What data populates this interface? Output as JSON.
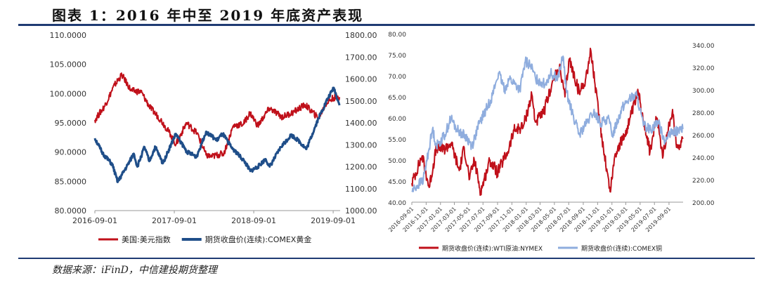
{
  "title": "图表 1：2016 年中至 2019 年底资产表现",
  "source": "数据来源：iFinD，中信建投期货整理",
  "chart_data": [
    {
      "type": "line",
      "dual_axis": true,
      "x_ticks": [
        "2016-09-01",
        "2017-09-01",
        "2018-09-01",
        "2019-09-01"
      ],
      "y_left": {
        "ylim": [
          80,
          110
        ],
        "ticks": [
          "80.0000",
          "85.0000",
          "90.0000",
          "95.0000",
          "100.0000",
          "105.0000",
          "110.0000"
        ]
      },
      "y_right": {
        "ylim": [
          1000,
          1800
        ],
        "ticks": [
          "1000.00",
          "1100.00",
          "1200.00",
          "1300.00",
          "1400.00",
          "1500.00",
          "1600.00",
          "1700.00",
          "1800.00"
        ]
      },
      "series": [
        {
          "name": "美国:美元指数",
          "axis": "left",
          "color": "#c0101a",
          "x": [
            "2016-09-01",
            "2016-10-15",
            "2016-12-01",
            "2017-01-03",
            "2017-02-15",
            "2017-04-01",
            "2017-05-15",
            "2017-07-01",
            "2017-08-15",
            "2017-09-08",
            "2017-10-27",
            "2017-12-15",
            "2018-01-25",
            "2018-02-16",
            "2018-04-17",
            "2018-05-30",
            "2018-07-15",
            "2018-08-15",
            "2018-09-20",
            "2018-11-12",
            "2019-01-10",
            "2019-03-01",
            "2019-04-25",
            "2019-06-25",
            "2019-08-01",
            "2019-09-03",
            "2019-09-30"
          ],
          "values": [
            95.5,
            97.8,
            101.5,
            103.2,
            100.5,
            100.3,
            97.5,
            95.5,
            93.0,
            91.3,
            95.0,
            93.2,
            89.5,
            89.2,
            89.8,
            94.5,
            94.8,
            96.7,
            94.5,
            97.5,
            96.0,
            96.8,
            98.1,
            95.8,
            98.4,
            99.3,
            99.4
          ]
        },
        {
          "name": "期货收盘价(连续):COMEX黄金",
          "axis": "right",
          "color": "#1f4e89",
          "x": [
            "2016-09-01",
            "2016-10-07",
            "2016-11-20",
            "2016-12-15",
            "2017-01-31",
            "2017-02-27",
            "2017-03-15",
            "2017-04-17",
            "2017-05-09",
            "2017-06-06",
            "2017-07-10",
            "2017-09-08",
            "2017-10-27",
            "2017-12-12",
            "2018-01-25",
            "2018-03-15",
            "2018-04-11",
            "2018-05-21",
            "2018-07-20",
            "2018-08-16",
            "2018-09-20",
            "2018-10-26",
            "2018-11-13",
            "2019-01-04",
            "2019-02-20",
            "2019-03-25",
            "2019-05-01",
            "2019-06-25",
            "2019-08-07",
            "2019-09-04",
            "2019-09-30"
          ],
          "values": [
            1330,
            1260,
            1210,
            1130,
            1210,
            1260,
            1200,
            1290,
            1225,
            1290,
            1215,
            1350,
            1270,
            1245,
            1360,
            1320,
            1350,
            1290,
            1225,
            1180,
            1200,
            1235,
            1200,
            1290,
            1345,
            1320,
            1280,
            1420,
            1510,
            1560,
            1480
          ]
        }
      ]
    },
    {
      "type": "line",
      "dual_axis": true,
      "x_ticks": [
        "2016-09-01",
        "2016-11-01",
        "2017-01-01",
        "2017-03-01",
        "2017-05-01",
        "2017-07-01",
        "2017-09-01",
        "2017-11-01",
        "2018-01-01",
        "2018-03-01",
        "2018-05-01",
        "2018-07-01",
        "2018-09-01",
        "2018-11-01",
        "2019-01-01",
        "2019-03-01",
        "2019-05-01",
        "2019-07-01",
        "2019-09-01"
      ],
      "y_left": {
        "ylim": [
          40,
          80
        ],
        "ticks": [
          "40.00",
          "45.00",
          "50.00",
          "55.00",
          "60.00",
          "65.00",
          "70.00",
          "75.00",
          "80.00"
        ]
      },
      "y_right": {
        "ylim": [
          200,
          350
        ],
        "ticks": [
          "200.00",
          "220.00",
          "240.00",
          "260.00",
          "280.00",
          "300.00",
          "320.00",
          "340.00"
        ]
      },
      "series": [
        {
          "name": "期货收盘价(连续):WTI原油:NYMEX",
          "axis": "left",
          "color": "#c0101a",
          "x": [
            "2016-09-01",
            "2016-10-15",
            "2016-11-14",
            "2016-12-15",
            "2017-01-15",
            "2017-02-15",
            "2017-03-22",
            "2017-04-12",
            "2017-05-05",
            "2017-05-25",
            "2017-06-21",
            "2017-07-31",
            "2017-08-31",
            "2017-10-15",
            "2017-11-10",
            "2017-12-20",
            "2018-01-25",
            "2018-02-09",
            "2018-03-15",
            "2018-04-20",
            "2018-05-22",
            "2018-06-15",
            "2018-07-03",
            "2018-08-15",
            "2018-09-10",
            "2018-10-03",
            "2018-11-10",
            "2018-12-24",
            "2019-01-15",
            "2019-02-25",
            "2019-04-23",
            "2019-06-12",
            "2019-07-11",
            "2019-08-07",
            "2019-09-16",
            "2019-10-03",
            "2019-10-30"
          ],
          "values": [
            44.5,
            51.0,
            43.5,
            53.0,
            52.5,
            54.0,
            47.5,
            53.0,
            45.5,
            50.0,
            42.5,
            50.0,
            47.0,
            52.0,
            57.0,
            58.0,
            65.5,
            59.0,
            61.0,
            68.0,
            72.0,
            65.0,
            74.0,
            66.0,
            69.0,
            76.0,
            59.0,
            42.5,
            51.5,
            56.0,
            66.0,
            52.0,
            60.0,
            51.0,
            62.0,
            53.0,
            55.0
          ]
        },
        {
          "name": "期货收盘价(连续):COMEX铜",
          "axis": "right",
          "color": "#8fadde",
          "x": [
            "2016-09-01",
            "2016-10-20",
            "2016-11-28",
            "2016-12-15",
            "2017-01-20",
            "2017-02-14",
            "2017-03-10",
            "2017-04-20",
            "2017-05-15",
            "2017-06-15",
            "2017-07-20",
            "2017-08-10",
            "2017-09-05",
            "2017-10-01",
            "2017-10-20",
            "2017-11-15",
            "2017-12-05",
            "2017-12-28",
            "2018-01-20",
            "2018-02-10",
            "2018-03-22",
            "2018-04-15",
            "2018-05-15",
            "2018-06-07",
            "2018-06-20",
            "2018-07-15",
            "2018-08-15",
            "2018-09-15",
            "2018-10-15",
            "2018-11-15",
            "2018-12-15",
            "2019-01-03",
            "2019-02-15",
            "2019-03-15",
            "2019-04-17",
            "2019-05-15",
            "2019-06-15",
            "2019-07-15",
            "2019-08-15",
            "2019-09-15",
            "2019-10-30"
          ],
          "values": [
            210,
            220,
            265,
            250,
            260,
            275,
            265,
            258,
            250,
            270,
            285,
            295,
            315,
            300,
            310,
            305,
            300,
            325,
            322,
            310,
            305,
            315,
            310,
            330,
            300,
            280,
            260,
            270,
            280,
            270,
            275,
            260,
            285,
            292,
            295,
            268,
            265,
            272,
            255,
            262,
            265
          ]
        }
      ]
    }
  ]
}
